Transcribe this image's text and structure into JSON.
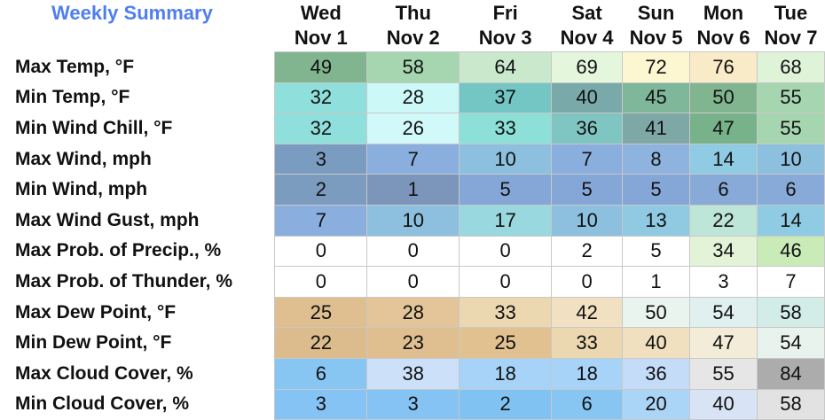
{
  "title": "Weekly Summary",
  "days": [
    {
      "name": "Wed",
      "date": "Nov 1"
    },
    {
      "name": "Thu",
      "date": "Nov 2"
    },
    {
      "name": "Fri",
      "date": "Nov 3"
    },
    {
      "name": "Sat",
      "date": "Nov 4"
    },
    {
      "name": "Sun",
      "date": "Nov 5"
    },
    {
      "name": "Mon",
      "date": "Nov 6"
    },
    {
      "name": "Tue",
      "date": "Nov 7"
    }
  ],
  "rows": [
    {
      "label": "Max Temp, °F",
      "values": [
        "49",
        "58",
        "64",
        "69",
        "72",
        "76",
        "68"
      ],
      "colors": [
        "#80b58f",
        "#a6d6b0",
        "#c9e8cc",
        "#e4f6dc",
        "#fcf7d0",
        "#f9ebc8",
        "#dff3d8"
      ]
    },
    {
      "label": "Min Temp, °F",
      "values": [
        "32",
        "28",
        "37",
        "40",
        "45",
        "50",
        "55"
      ],
      "colors": [
        "#8fe0dc",
        "#cdf8f8",
        "#74c6c4",
        "#7aa9aa",
        "#7fb79b",
        "#80b58f",
        "#a6d6b0"
      ]
    },
    {
      "label": "Min Wind Chill, °F",
      "values": [
        "32",
        "26",
        "33",
        "36",
        "41",
        "47",
        "55"
      ],
      "colors": [
        "#8fe0dc",
        "#d2f9fa",
        "#8ce0d7",
        "#7fc6c2",
        "#7da8a6",
        "#78b28a",
        "#a6d6b0"
      ]
    },
    {
      "label": "Max Wind, mph",
      "values": [
        "3",
        "7",
        "10",
        "7",
        "8",
        "14",
        "10"
      ],
      "colors": [
        "#7a9cc0",
        "#8aaedd",
        "#8cc0de",
        "#8aaedd",
        "#8fb3df",
        "#8fcce3",
        "#8cc0de"
      ]
    },
    {
      "label": "Min Wind, mph",
      "values": [
        "2",
        "1",
        "5",
        "5",
        "5",
        "6",
        "6"
      ],
      "colors": [
        "#7b9bbf",
        "#7b96ba",
        "#85a7d7",
        "#85a7d7",
        "#85a7d7",
        "#88aad9",
        "#88aad9"
      ]
    },
    {
      "label": "Max Wind Gust, mph",
      "values": [
        "7",
        "10",
        "17",
        "10",
        "13",
        "22",
        "14"
      ],
      "colors": [
        "#8aaedd",
        "#8cc0de",
        "#9ad8e0",
        "#8cc0de",
        "#90c9e2",
        "#bde6d8",
        "#8fcce3"
      ]
    },
    {
      "label": "Max Prob. of Precip., %",
      "values": [
        "0",
        "0",
        "0",
        "2",
        "5",
        "34",
        "46"
      ],
      "colors": [
        "#ffffff",
        "#ffffff",
        "#ffffff",
        "#ffffff",
        "#ffffff",
        "#e2f3d8",
        "#c8ebb8"
      ]
    },
    {
      "label": "Max Prob. of Thunder, %",
      "values": [
        "0",
        "0",
        "0",
        "0",
        "1",
        "3",
        "7"
      ],
      "colors": [
        "#ffffff",
        "#ffffff",
        "#ffffff",
        "#ffffff",
        "#ffffff",
        "#ffffff",
        "#ffffff"
      ]
    },
    {
      "label": "Max Dew Point, °F",
      "values": [
        "25",
        "28",
        "33",
        "42",
        "50",
        "54",
        "58"
      ],
      "colors": [
        "#dfbe8f",
        "#e3c599",
        "#ecd8b0",
        "#f1e1c2",
        "#eaf4ee",
        "#e0f0ee",
        "#d2ece8"
      ]
    },
    {
      "label": "Min Dew Point, °F",
      "values": [
        "22",
        "23",
        "25",
        "33",
        "40",
        "47",
        "54"
      ],
      "colors": [
        "#dcbb8c",
        "#dfbe8f",
        "#e1c18f",
        "#ecd8b0",
        "#f0e0bf",
        "#f3ecd8",
        "#e8f3ee"
      ]
    },
    {
      "label": "Max Cloud Cover, %",
      "values": [
        "6",
        "38",
        "18",
        "18",
        "36",
        "55",
        "84"
      ],
      "colors": [
        "#87c5f3",
        "#cde0fa",
        "#a6d3f7",
        "#a6d3f7",
        "#c5dcf9",
        "#e6e6e6",
        "#acacac"
      ]
    },
    {
      "label": "Min Cloud Cover, %",
      "values": [
        "3",
        "3",
        "2",
        "6",
        "20",
        "40",
        "58"
      ],
      "colors": [
        "#84c3f3",
        "#84c3f3",
        "#80c2f2",
        "#87c5f3",
        "#abd5f7",
        "#d8e4f5",
        "#e2e2e2"
      ]
    }
  ]
}
